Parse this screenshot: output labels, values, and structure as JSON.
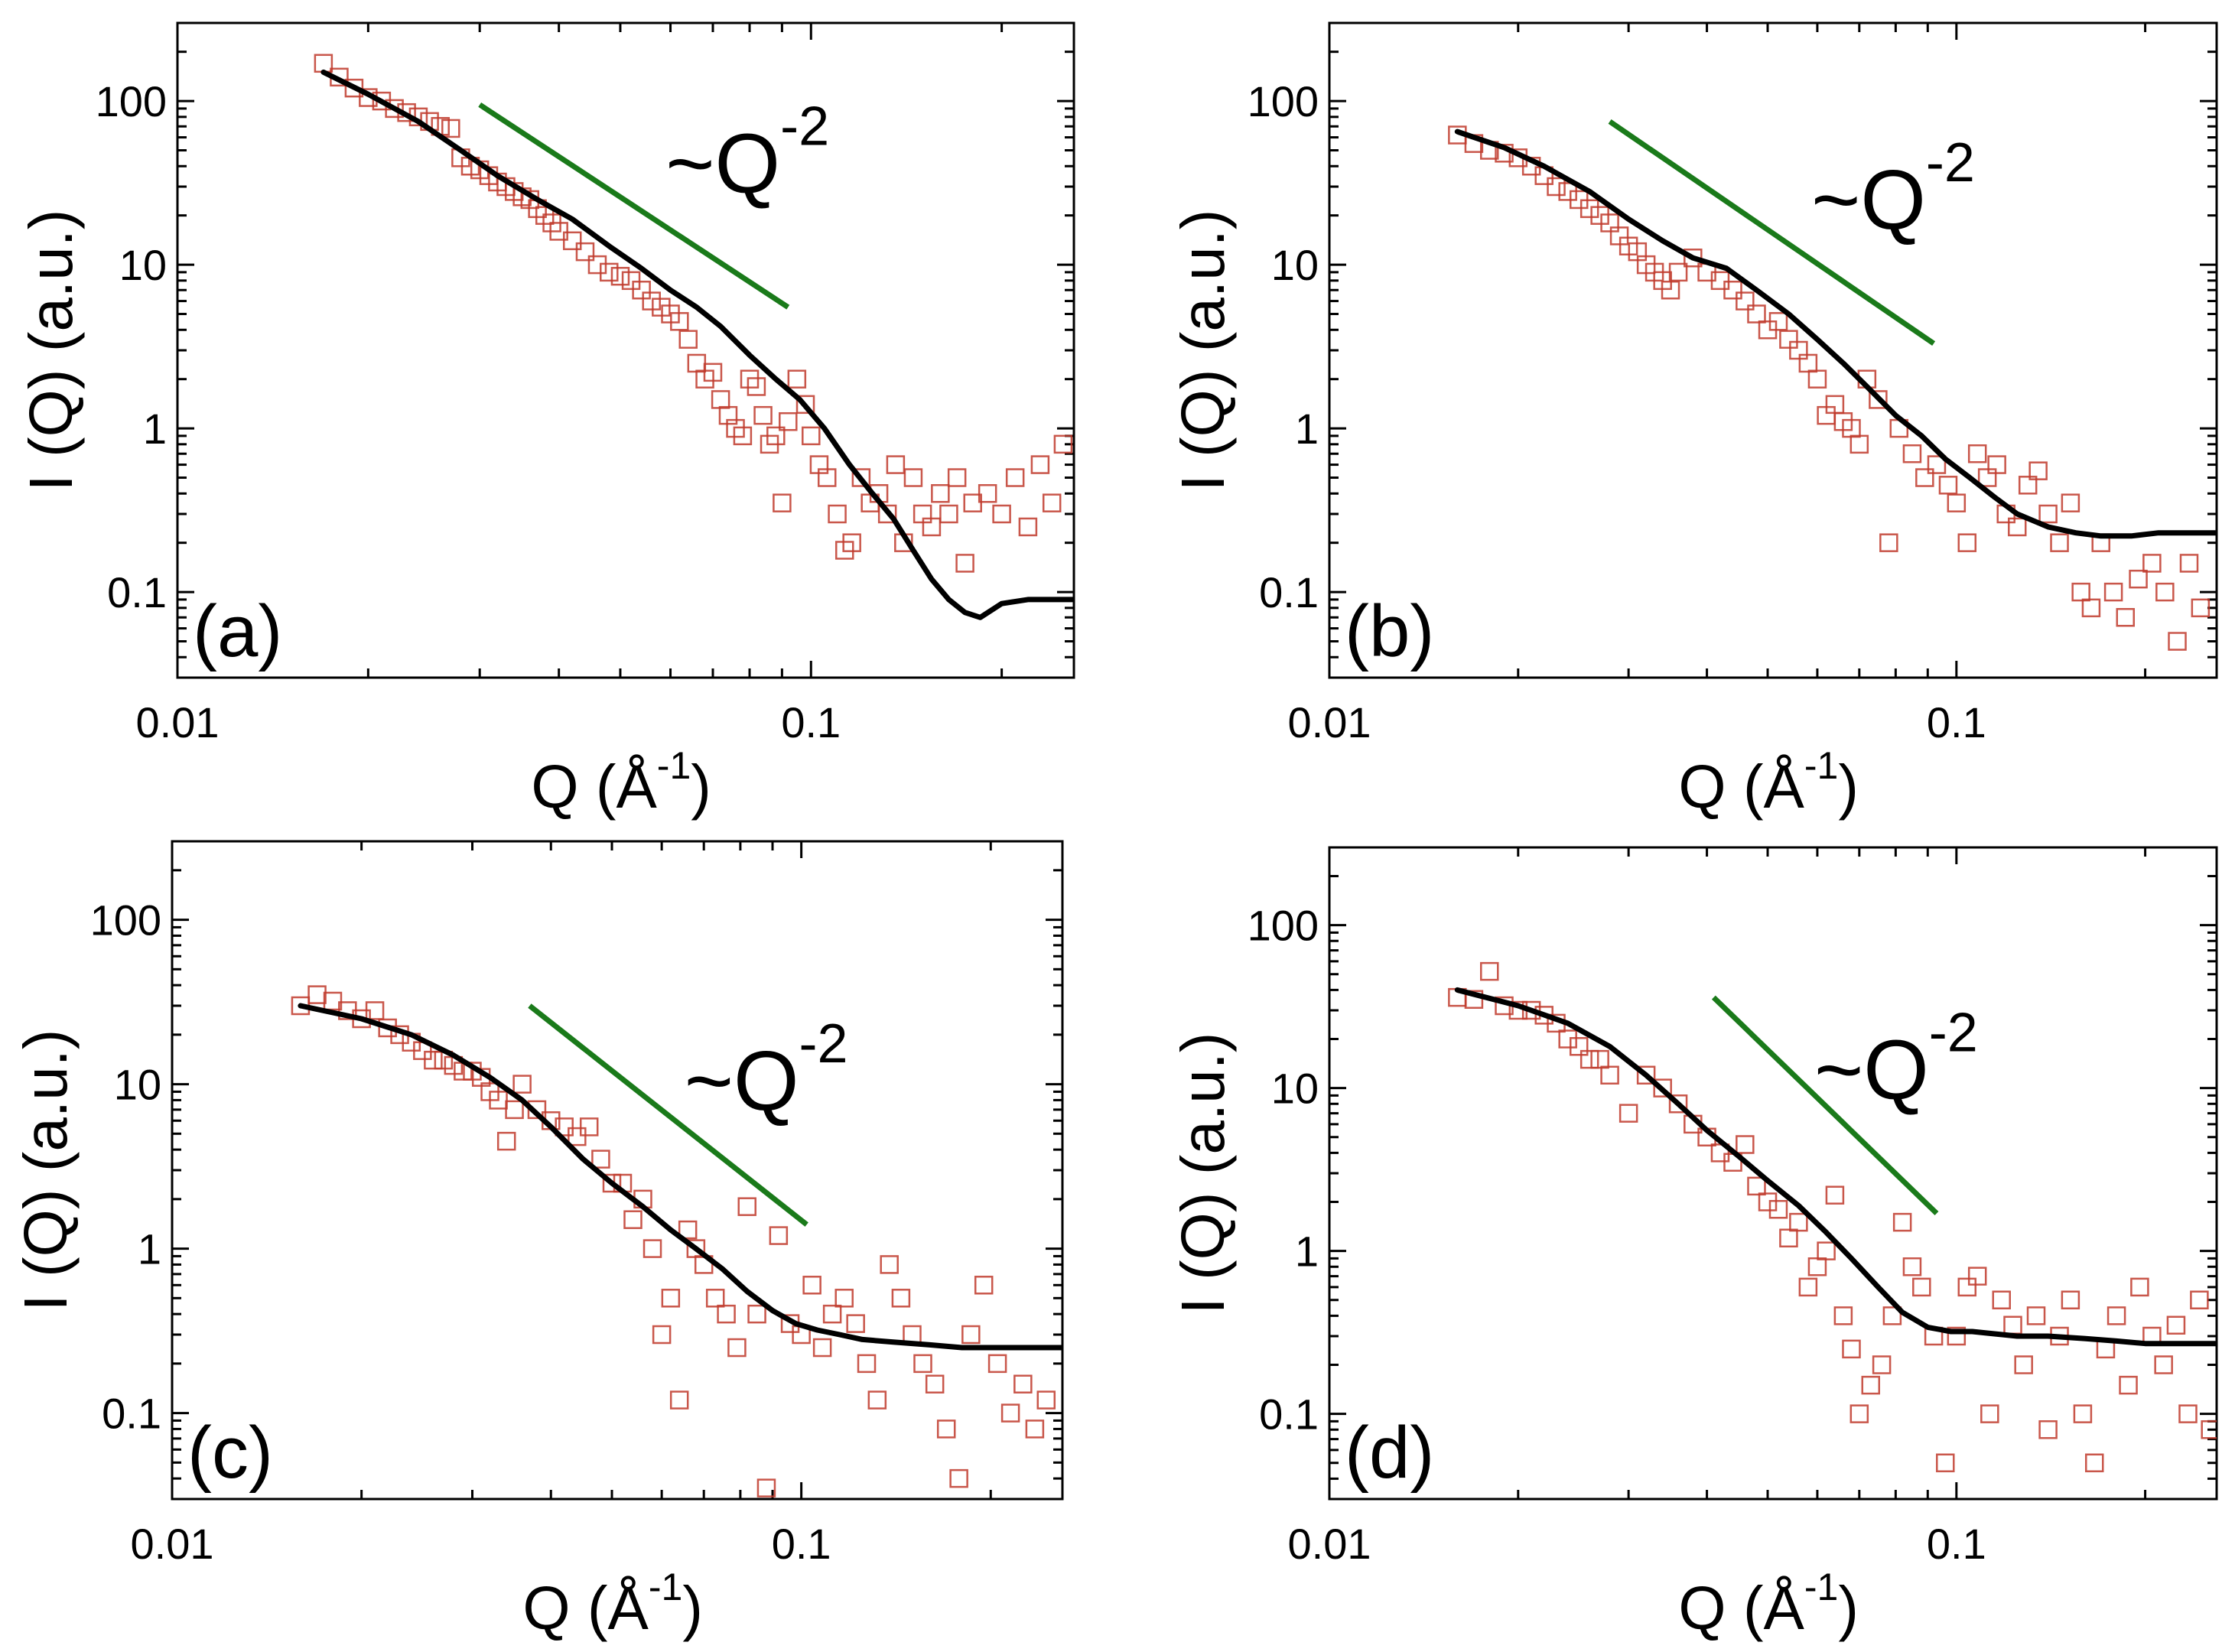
{
  "chart_data": [
    {
      "type": "scatter",
      "panel_label": "(a)",
      "xlabel": "Q (Å",
      "xlabel_sup": "-1",
      "xlabel_close": ")",
      "ylabel": "I (Q) (a.u.)",
      "xscale": "log",
      "yscale": "log",
      "xlim": [
        0.01,
        0.26
      ],
      "ylim": [
        0.03,
        300
      ],
      "x_ticks": [
        0.01,
        0.1
      ],
      "x_tick_labels": [
        "0.01",
        "0.1"
      ],
      "y_ticks": [
        0.1,
        1,
        10,
        100
      ],
      "y_tick_labels": [
        "0.1",
        "1",
        "10",
        "100"
      ],
      "annotation": {
        "text": "~Q",
        "sup": "-2",
        "slope_line": {
          "x1": 0.03,
          "y1": 95,
          "x2": 0.092,
          "y2": 5.5,
          "color": "#1a7a1a"
        }
      },
      "fit_curve": {
        "color": "#000000",
        "x": [
          0.017,
          0.02,
          0.024,
          0.028,
          0.032,
          0.037,
          0.042,
          0.048,
          0.054,
          0.06,
          0.066,
          0.072,
          0.08,
          0.088,
          0.096,
          0.105,
          0.115,
          0.125,
          0.135,
          0.145,
          0.155,
          0.165,
          0.175,
          0.185,
          0.2,
          0.22,
          0.26
        ],
        "y": [
          150,
          110,
          75,
          50,
          35,
          25,
          19,
          13,
          9.5,
          7,
          5.5,
          4.2,
          2.8,
          2.0,
          1.5,
          1.0,
          0.6,
          0.4,
          0.28,
          0.18,
          0.12,
          0.09,
          0.075,
          0.07,
          0.085,
          0.09,
          0.09
        ]
      },
      "markers": {
        "color": "#c0392b",
        "shape": "open-square",
        "x": [
          0.017,
          0.018,
          0.019,
          0.02,
          0.021,
          0.022,
          0.023,
          0.024,
          0.025,
          0.026,
          0.027,
          0.028,
          0.029,
          0.03,
          0.031,
          0.032,
          0.033,
          0.034,
          0.035,
          0.036,
          0.037,
          0.038,
          0.039,
          0.04,
          0.042,
          0.044,
          0.046,
          0.048,
          0.05,
          0.052,
          0.054,
          0.056,
          0.058,
          0.06,
          0.062,
          0.064,
          0.066,
          0.068,
          0.07,
          0.072,
          0.074,
          0.076,
          0.078,
          0.08,
          0.082,
          0.084,
          0.086,
          0.088,
          0.09,
          0.092,
          0.095,
          0.098,
          0.1,
          0.103,
          0.106,
          0.11,
          0.113,
          0.116,
          0.12,
          0.124,
          0.128,
          0.132,
          0.136,
          0.14,
          0.145,
          0.15,
          0.155,
          0.16,
          0.165,
          0.17,
          0.175,
          0.18,
          0.19,
          0.2,
          0.21,
          0.22,
          0.23,
          0.24,
          0.25
        ],
        "y": [
          170,
          140,
          120,
          105,
          100,
          90,
          85,
          80,
          75,
          70,
          68,
          45,
          40,
          38,
          35,
          32,
          30,
          28,
          26,
          25,
          22,
          20,
          18,
          16,
          14,
          12,
          10,
          9,
          8.5,
          8,
          7,
          6,
          5.5,
          5,
          4.5,
          3.5,
          2.5,
          2,
          2.2,
          1.5,
          1.2,
          1.0,
          0.9,
          2.0,
          1.8,
          1.2,
          0.8,
          0.9,
          0.35,
          1.1,
          2.0,
          1.4,
          0.9,
          0.6,
          0.5,
          0.3,
          0.18,
          0.2,
          0.5,
          0.35,
          0.4,
          0.3,
          0.6,
          0.2,
          0.5,
          0.3,
          0.25,
          0.4,
          0.3,
          0.5,
          0.15,
          0.35,
          0.4,
          0.3,
          0.5,
          0.25,
          0.6,
          0.35,
          0.8
        ]
      }
    },
    {
      "type": "scatter",
      "panel_label": "(b)",
      "xlabel": "Q (Å",
      "xlabel_sup": "-1",
      "xlabel_close": ")",
      "ylabel": "I (Q) (a.u.)",
      "xscale": "log",
      "yscale": "log",
      "xlim": [
        0.01,
        0.26
      ],
      "ylim": [
        0.03,
        300
      ],
      "x_ticks": [
        0.01,
        0.1
      ],
      "x_tick_labels": [
        "0.01",
        "0.1"
      ],
      "y_ticks": [
        0.1,
        1,
        10,
        100
      ],
      "y_tick_labels": [
        "0.1",
        "1",
        "10",
        "100"
      ],
      "annotation": {
        "text": "~Q",
        "sup": "-2",
        "slope_line": {
          "x1": 0.028,
          "y1": 75,
          "x2": 0.092,
          "y2": 3.3,
          "color": "#1a7a1a"
        }
      },
      "fit_curve": {
        "color": "#000000",
        "x": [
          0.016,
          0.019,
          0.022,
          0.026,
          0.03,
          0.034,
          0.038,
          0.043,
          0.048,
          0.054,
          0.06,
          0.066,
          0.072,
          0.08,
          0.088,
          0.096,
          0.105,
          0.115,
          0.125,
          0.14,
          0.155,
          0.17,
          0.19,
          0.21,
          0.26
        ],
        "y": [
          65,
          52,
          40,
          28,
          19,
          14,
          11,
          9.5,
          7,
          5,
          3.5,
          2.5,
          1.8,
          1.2,
          0.9,
          0.65,
          0.5,
          0.38,
          0.3,
          0.25,
          0.23,
          0.22,
          0.22,
          0.23,
          0.23
        ]
      },
      "markers": {
        "color": "#c0392b",
        "shape": "open-square",
        "x": [
          0.016,
          0.017,
          0.018,
          0.019,
          0.02,
          0.021,
          0.022,
          0.023,
          0.024,
          0.025,
          0.026,
          0.027,
          0.028,
          0.029,
          0.03,
          0.031,
          0.032,
          0.033,
          0.034,
          0.035,
          0.036,
          0.038,
          0.04,
          0.042,
          0.044,
          0.046,
          0.048,
          0.05,
          0.052,
          0.054,
          0.056,
          0.058,
          0.06,
          0.062,
          0.064,
          0.066,
          0.068,
          0.07,
          0.072,
          0.075,
          0.078,
          0.081,
          0.085,
          0.089,
          0.093,
          0.097,
          0.1,
          0.104,
          0.108,
          0.112,
          0.116,
          0.12,
          0.125,
          0.13,
          0.135,
          0.14,
          0.146,
          0.152,
          0.158,
          0.164,
          0.17,
          0.178,
          0.186,
          0.195,
          0.205,
          0.215,
          0.225,
          0.235,
          0.245
        ],
        "y": [
          62,
          55,
          50,
          48,
          45,
          40,
          35,
          30,
          28,
          25,
          22,
          20,
          18,
          15,
          13,
          12,
          10,
          9,
          8,
          7,
          9,
          11,
          9,
          8,
          7,
          6,
          5,
          4,
          4.5,
          3.5,
          3,
          2.5,
          2,
          1.2,
          1.4,
          1.1,
          1.0,
          0.8,
          2.0,
          1.5,
          0.2,
          1.0,
          0.7,
          0.5,
          0.6,
          0.45,
          0.35,
          0.2,
          0.7,
          0.5,
          0.6,
          0.3,
          0.25,
          0.45,
          0.55,
          0.3,
          0.2,
          0.35,
          0.1,
          0.08,
          0.2,
          0.1,
          0.07,
          0.12,
          0.15,
          0.1,
          0.05,
          0.15,
          0.08
        ]
      }
    },
    {
      "type": "scatter",
      "panel_label": "(c)",
      "xlabel": "Q (Å",
      "xlabel_sup": "-1",
      "xlabel_close": ")",
      "ylabel": "I (Q) (a.u.)",
      "xscale": "log",
      "yscale": "log",
      "xlim": [
        0.01,
        0.26
      ],
      "ylim": [
        0.03,
        300
      ],
      "x_ticks": [
        0.01,
        0.1
      ],
      "x_tick_labels": [
        "0.01",
        "0.1"
      ],
      "y_ticks": [
        0.1,
        1,
        10,
        100
      ],
      "y_tick_labels": [
        "0.1",
        "1",
        "10",
        "100"
      ],
      "annotation": {
        "text": "~Q",
        "sup": "-2",
        "slope_line": {
          "x1": 0.037,
          "y1": 30,
          "x2": 0.102,
          "y2": 1.4,
          "color": "#1a7a1a"
        }
      },
      "fit_curve": {
        "color": "#000000",
        "x": [
          0.016,
          0.02,
          0.024,
          0.028,
          0.032,
          0.036,
          0.04,
          0.045,
          0.05,
          0.056,
          0.062,
          0.068,
          0.075,
          0.082,
          0.09,
          0.098,
          0.106,
          0.115,
          0.125,
          0.14,
          0.16,
          0.18,
          0.2,
          0.26
        ],
        "y": [
          30,
          25,
          20,
          15,
          11,
          8,
          5.5,
          3.5,
          2.5,
          1.8,
          1.3,
          1.0,
          0.75,
          0.55,
          0.42,
          0.35,
          0.32,
          0.3,
          0.28,
          0.27,
          0.26,
          0.25,
          0.25,
          0.25
        ]
      },
      "markers": {
        "color": "#c0392b",
        "shape": "open-square",
        "x": [
          0.016,
          0.017,
          0.018,
          0.019,
          0.02,
          0.021,
          0.022,
          0.023,
          0.024,
          0.025,
          0.026,
          0.027,
          0.028,
          0.029,
          0.03,
          0.031,
          0.032,
          0.033,
          0.034,
          0.035,
          0.036,
          0.038,
          0.04,
          0.042,
          0.044,
          0.046,
          0.048,
          0.05,
          0.052,
          0.054,
          0.056,
          0.058,
          0.06,
          0.062,
          0.064,
          0.066,
          0.068,
          0.07,
          0.073,
          0.076,
          0.079,
          0.082,
          0.085,
          0.088,
          0.092,
          0.096,
          0.1,
          0.104,
          0.108,
          0.112,
          0.117,
          0.122,
          0.127,
          0.132,
          0.138,
          0.144,
          0.15,
          0.156,
          0.163,
          0.17,
          0.178,
          0.186,
          0.195,
          0.205,
          0.215,
          0.225,
          0.235,
          0.245
        ],
        "y": [
          30,
          35,
          32,
          28,
          25,
          28,
          22,
          20,
          18,
          16,
          14,
          14,
          13,
          12,
          12,
          11,
          9,
          8,
          4.5,
          7,
          10,
          7,
          6,
          5.5,
          4.8,
          5.5,
          3.5,
          2.5,
          2.5,
          1.5,
          2.0,
          1.0,
          0.3,
          0.5,
          0.12,
          1.3,
          1.0,
          0.8,
          0.5,
          0.4,
          0.25,
          1.8,
          0.4,
          0.035,
          1.2,
          0.35,
          0.3,
          0.6,
          0.25,
          0.4,
          0.5,
          0.35,
          0.2,
          0.12,
          0.8,
          0.5,
          0.3,
          0.2,
          0.15,
          0.08,
          0.04,
          0.3,
          0.6,
          0.2,
          0.1,
          0.15,
          0.08,
          0.12
        ]
      }
    },
    {
      "type": "scatter",
      "panel_label": "(d)",
      "xlabel": "Q (Å",
      "xlabel_sup": "-1",
      "xlabel_close": ")",
      "ylabel": "I (Q) (a.u.)",
      "xscale": "log",
      "yscale": "log",
      "xlim": [
        0.01,
        0.26
      ],
      "ylim": [
        0.03,
        300
      ],
      "x_ticks": [
        0.01,
        0.1
      ],
      "x_tick_labels": [
        "0.01",
        "0.1"
      ],
      "y_ticks": [
        0.1,
        1,
        10,
        100
      ],
      "y_tick_labels": [
        "0.1",
        "1",
        "10",
        "100"
      ],
      "annotation": {
        "text": "~Q",
        "sup": "-2",
        "slope_line": {
          "x1": 0.041,
          "y1": 36,
          "x2": 0.093,
          "y2": 1.7,
          "color": "#1a7a1a"
        }
      },
      "fit_curve": {
        "color": "#000000",
        "x": [
          0.016,
          0.02,
          0.024,
          0.028,
          0.032,
          0.036,
          0.04,
          0.045,
          0.05,
          0.056,
          0.062,
          0.068,
          0.075,
          0.082,
          0.09,
          0.098,
          0.106,
          0.115,
          0.125,
          0.14,
          0.16,
          0.18,
          0.2,
          0.26
        ],
        "y": [
          40,
          32,
          25,
          18,
          12,
          8,
          5.5,
          3.8,
          2.7,
          1.9,
          1.3,
          0.9,
          0.6,
          0.42,
          0.34,
          0.32,
          0.32,
          0.31,
          0.3,
          0.3,
          0.29,
          0.28,
          0.27,
          0.27
        ]
      },
      "markers": {
        "color": "#c0392b",
        "shape": "open-square",
        "x": [
          0.016,
          0.017,
          0.018,
          0.019,
          0.02,
          0.021,
          0.022,
          0.023,
          0.024,
          0.025,
          0.026,
          0.027,
          0.028,
          0.03,
          0.032,
          0.034,
          0.036,
          0.038,
          0.04,
          0.042,
          0.044,
          0.046,
          0.048,
          0.05,
          0.052,
          0.054,
          0.056,
          0.058,
          0.06,
          0.062,
          0.064,
          0.066,
          0.068,
          0.07,
          0.073,
          0.076,
          0.079,
          0.082,
          0.085,
          0.088,
          0.092,
          0.096,
          0.1,
          0.104,
          0.108,
          0.113,
          0.118,
          0.123,
          0.128,
          0.134,
          0.14,
          0.146,
          0.152,
          0.159,
          0.166,
          0.173,
          0.18,
          0.188,
          0.196,
          0.205,
          0.214,
          0.224,
          0.234,
          0.244,
          0.254
        ],
        "y": [
          36,
          35,
          52,
          32,
          30,
          30,
          28,
          25,
          20,
          18,
          15,
          15,
          12,
          7,
          12,
          10,
          8,
          6,
          5,
          4,
          3.5,
          4.5,
          2.5,
          2.0,
          1.8,
          1.2,
          1.5,
          0.6,
          0.8,
          1.0,
          2.2,
          0.4,
          0.25,
          0.1,
          0.15,
          0.2,
          0.4,
          1.5,
          0.8,
          0.6,
          0.3,
          0.05,
          0.3,
          0.6,
          0.7,
          0.1,
          0.5,
          0.35,
          0.2,
          0.4,
          0.08,
          0.3,
          0.5,
          0.1,
          0.05,
          0.25,
          0.4,
          0.15,
          0.6,
          0.3,
          0.2,
          0.35,
          0.1,
          0.5,
          0.08
        ]
      }
    }
  ]
}
